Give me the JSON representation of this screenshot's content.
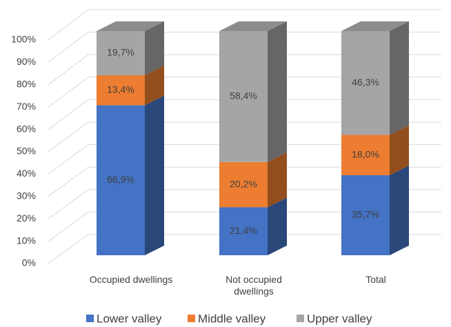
{
  "chart_data": {
    "type": "bar3d_stacked",
    "categories": [
      "Occupied dwellings",
      "Not occupied dwellings",
      "Total"
    ],
    "series": [
      {
        "name": "Lower valley",
        "color": "#4472c4",
        "values": [
          66.9,
          21.4,
          35.7
        ],
        "value_labels": [
          "66,9%",
          "21,4%",
          "35,7%"
        ]
      },
      {
        "name": "Middle valley",
        "color": "#ed7d31",
        "values": [
          13.4,
          20.2,
          18.0
        ],
        "value_labels": [
          "13,4%",
          "20,2%",
          "18,0%"
        ]
      },
      {
        "name": "Upper valley",
        "color": "#a5a5a5",
        "values": [
          19.7,
          58.4,
          46.3
        ],
        "value_labels": [
          "19,7%",
          "58,4%",
          "46,3%"
        ]
      }
    ],
    "ylim": [
      0,
      100
    ],
    "yticks": [
      {
        "value": 0,
        "label": "0%"
      },
      {
        "value": 10,
        "label": "10%"
      },
      {
        "value": 20,
        "label": "20%"
      },
      {
        "value": 30,
        "label": "30%"
      },
      {
        "value": 40,
        "label": "40%"
      },
      {
        "value": 50,
        "label": "50%"
      },
      {
        "value": 60,
        "label": "60%"
      },
      {
        "value": 70,
        "label": "70%"
      },
      {
        "value": 80,
        "label": "80%"
      },
      {
        "value": 90,
        "label": "90%"
      },
      {
        "value": 100,
        "label": "100%"
      }
    ],
    "grid": true,
    "legend": "bottom"
  }
}
